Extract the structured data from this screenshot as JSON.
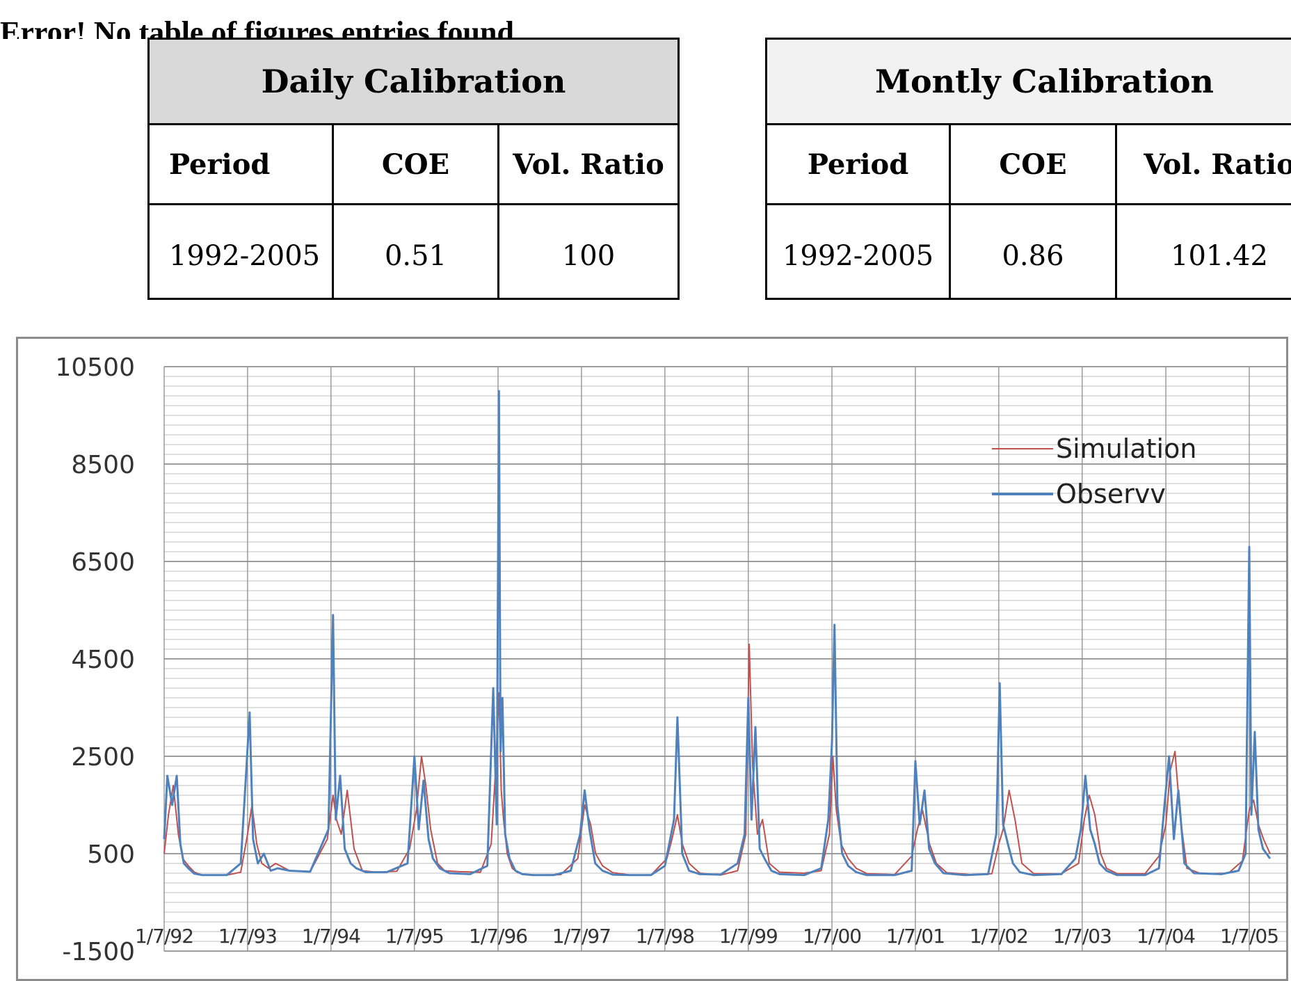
{
  "caption": {
    "error_text": "Error! No table of figures entries found."
  },
  "daily_table": {
    "title": "Daily Calibration",
    "headers": [
      "Period",
      "COE",
      "Vol. Ratio"
    ],
    "row": [
      "1992-2005",
      "0.51",
      "100"
    ]
  },
  "monthly_table": {
    "title": "Montly Calibration",
    "headers": [
      "Period",
      "COE",
      "Vol. Ratio"
    ],
    "row": [
      "1992-2005",
      "0.86",
      "101.42"
    ]
  },
  "chart_data": {
    "type": "line",
    "title": "",
    "xlabel": "",
    "ylabel": "",
    "ylim": [
      -1500,
      10500
    ],
    "yticks": [
      "10500",
      "8500",
      "6500",
      "4500",
      "2500",
      "500",
      "-1500"
    ],
    "xticks": [
      "1/7/92",
      "1/7/93",
      "1/7/94",
      "1/7/95",
      "1/7/96",
      "1/7/97",
      "1/7/98",
      "1/7/99",
      "1/7/00",
      "1/7/01",
      "1/7/02",
      "1/7/03",
      "1/7/04",
      "1/7/05"
    ],
    "grid": true,
    "legend_position": "top-right",
    "series": [
      {
        "name": "Simulation",
        "color": "#c0504d",
        "x": [
          "1992-07-01",
          "1992-07-20",
          "1992-08-10",
          "1992-09-01",
          "1992-09-20",
          "1992-10-15",
          "1992-11-10",
          "1992-12-15",
          "1993-02-01",
          "1993-04-01",
          "1993-06-01",
          "1993-07-01",
          "1993-07-20",
          "1993-08-10",
          "1993-09-01",
          "1993-10-01",
          "1993-11-01",
          "1994-01-01",
          "1994-04-01",
          "1994-06-15",
          "1994-07-10",
          "1994-07-25",
          "1994-08-15",
          "1994-09-10",
          "1994-10-10",
          "1994-11-15",
          "1995-01-15",
          "1995-04-15",
          "1995-06-10",
          "1995-07-10",
          "1995-08-01",
          "1995-08-20",
          "1995-09-10",
          "1995-10-10",
          "1995-11-10",
          "1996-01-15",
          "1996-04-15",
          "1996-06-01",
          "1996-06-20",
          "1996-07-05",
          "1996-07-15",
          "1996-07-25",
          "1996-08-10",
          "1996-09-01",
          "1996-09-25",
          "1996-11-01",
          "1997-01-01",
          "1997-04-01",
          "1997-06-15",
          "1997-07-15",
          "1997-08-10",
          "1997-09-01",
          "1997-10-01",
          "1997-11-15",
          "1998-02-01",
          "1998-05-01",
          "1998-07-10",
          "1998-08-01",
          "1998-08-25",
          "1998-09-15",
          "1998-10-15",
          "1998-12-01",
          "1999-03-01",
          "1999-05-15",
          "1999-06-20",
          "1999-07-05",
          "1999-07-20",
          "1999-08-10",
          "1999-09-01",
          "1999-10-01",
          "1999-11-15",
          "2000-03-01",
          "2000-05-15",
          "2000-06-20",
          "2000-07-05",
          "2000-07-20",
          "2000-08-10",
          "2000-09-10",
          "2000-10-15",
          "2000-12-01",
          "2001-04-01",
          "2001-06-15",
          "2001-07-10",
          "2001-08-01",
          "2001-09-01",
          "2001-10-01",
          "2001-11-15",
          "2002-03-01",
          "2002-06-01",
          "2002-07-01",
          "2002-07-20",
          "2002-08-15",
          "2002-09-10",
          "2002-10-10",
          "2002-12-01",
          "2003-04-01",
          "2003-06-15",
          "2003-07-10",
          "2003-08-01",
          "2003-08-25",
          "2003-09-20",
          "2003-10-15",
          "2003-12-01",
          "2004-04-01",
          "2004-06-01",
          "2004-07-01",
          "2004-07-20",
          "2004-08-10",
          "2004-09-01",
          "2004-10-01",
          "2004-12-01",
          "2005-04-01",
          "2005-06-01",
          "2005-07-01",
          "2005-07-20",
          "2005-08-10",
          "2005-09-01",
          "2005-09-30"
        ],
        "values": [
          500,
          1300,
          1900,
          900,
          400,
          250,
          120,
          60,
          60,
          60,
          120,
          900,
          1500,
          700,
          300,
          200,
          300,
          150,
          130,
          800,
          1700,
          1200,
          900,
          1800,
          600,
          150,
          120,
          140,
          600,
          1400,
          2500,
          1900,
          1000,
          300,
          150,
          130,
          120,
          700,
          2200,
          3800,
          1800,
          1200,
          500,
          200,
          110,
          70,
          60,
          70,
          400,
          1500,
          1100,
          500,
          250,
          110,
          60,
          60,
          400,
          800,
          1300,
          700,
          300,
          100,
          60,
          150,
          900,
          4800,
          2300,
          900,
          1200,
          300,
          120,
          100,
          150,
          900,
          2500,
          1400,
          700,
          400,
          200,
          90,
          70,
          450,
          1000,
          1400,
          700,
          300,
          110,
          70,
          90,
          700,
          1000,
          1800,
          1200,
          300,
          90,
          90,
          300,
          1200,
          1700,
          1300,
          500,
          200,
          90,
          90,
          450,
          1100,
          2200,
          2600,
          1300,
          200,
          90,
          100,
          350,
          1400,
          1600,
          1100,
          800,
          500
        ]
      },
      {
        "name": "Observv",
        "color": "#4f81bd",
        "x": [
          "1992-07-01",
          "1992-07-15",
          "1992-08-05",
          "1992-08-25",
          "1992-09-10",
          "1992-09-25",
          "1992-10-15",
          "1992-11-10",
          "1992-12-15",
          "1993-02-01",
          "1993-04-01",
          "1993-06-01",
          "1993-06-25",
          "1993-07-10",
          "1993-07-25",
          "1993-08-15",
          "1993-09-10",
          "1993-10-10",
          "1993-11-10",
          "1994-01-01",
          "1994-04-01",
          "1994-06-20",
          "1994-07-10",
          "1994-07-22",
          "1994-08-10",
          "1994-08-30",
          "1994-09-25",
          "1994-10-20",
          "1994-12-01",
          "1995-03-01",
          "1995-06-01",
          "1995-07-01",
          "1995-07-20",
          "1995-08-10",
          "1995-09-01",
          "1995-09-20",
          "1995-10-20",
          "1995-12-01",
          "1996-03-01",
          "1996-05-15",
          "1996-06-10",
          "1996-06-25",
          "1996-07-05",
          "1996-07-12",
          "1996-07-20",
          "1996-08-01",
          "1996-08-20",
          "1996-09-15",
          "1996-10-15",
          "1996-12-01",
          "1997-03-01",
          "1997-05-15",
          "1997-06-25",
          "1997-07-15",
          "1997-08-05",
          "1997-08-30",
          "1997-10-01",
          "1997-11-15",
          "1998-02-01",
          "1998-05-01",
          "1998-07-01",
          "1998-07-20",
          "1998-08-10",
          "1998-08-25",
          "1998-09-15",
          "1998-10-15",
          "1998-12-01",
          "1999-03-01",
          "1999-05-15",
          "1999-06-15",
          "1999-07-01",
          "1999-07-15",
          "1999-08-01",
          "1999-08-20",
          "1999-09-10",
          "1999-10-10",
          "1999-11-15",
          "2000-03-01",
          "2000-05-15",
          "2000-06-15",
          "2000-07-01",
          "2000-07-12",
          "2000-07-25",
          "2000-08-15",
          "2000-09-10",
          "2000-10-15",
          "2000-12-01",
          "2001-04-01",
          "2001-06-15",
          "2001-07-01",
          "2001-07-20",
          "2001-08-10",
          "2001-08-30",
          "2001-09-25",
          "2001-11-01",
          "2002-02-01",
          "2002-05-15",
          "2002-06-20",
          "2002-07-05",
          "2002-07-20",
          "2002-08-10",
          "2002-09-01",
          "2002-10-01",
          "2002-12-01",
          "2003-04-01",
          "2003-06-01",
          "2003-06-25",
          "2003-07-15",
          "2003-08-05",
          "2003-08-25",
          "2003-09-15",
          "2003-10-15",
          "2003-12-01",
          "2004-04-01",
          "2004-06-01",
          "2004-06-25",
          "2004-07-15",
          "2004-08-05",
          "2004-08-25",
          "2004-09-20",
          "2004-11-01",
          "2005-03-01",
          "2005-05-15",
          "2005-06-15",
          "2005-07-01",
          "2005-07-10",
          "2005-07-25",
          "2005-08-10",
          "2005-08-30",
          "2005-09-30"
        ],
        "values": [
          800,
          2100,
          1500,
          2100,
          700,
          300,
          200,
          90,
          60,
          60,
          60,
          300,
          2200,
          3400,
          800,
          300,
          500,
          150,
          200,
          150,
          130,
          1000,
          5400,
          1200,
          2100,
          600,
          300,
          200,
          120,
          120,
          300,
          2500,
          1000,
          2000,
          800,
          400,
          200,
          100,
          80,
          250,
          3900,
          1100,
          10000,
          2600,
          3700,
          900,
          400,
          150,
          80,
          60,
          60,
          150,
          900,
          1800,
          1000,
          300,
          150,
          70,
          60,
          60,
          250,
          700,
          1200,
          3300,
          500,
          150,
          80,
          70,
          300,
          900,
          3700,
          1200,
          3100,
          600,
          400,
          150,
          80,
          60,
          200,
          1200,
          2800,
          5200,
          1500,
          500,
          250,
          120,
          60,
          60,
          150,
          2400,
          1100,
          1800,
          600,
          300,
          100,
          60,
          80,
          900,
          4000,
          1100,
          700,
          300,
          120,
          60,
          80,
          400,
          1000,
          2100,
          1000,
          700,
          300,
          150,
          60,
          60,
          200,
          1500,
          2500,
          800,
          1800,
          300,
          100,
          80,
          150,
          500,
          6800,
          1300,
          3000,
          1000,
          600,
          400
        ]
      }
    ]
  }
}
